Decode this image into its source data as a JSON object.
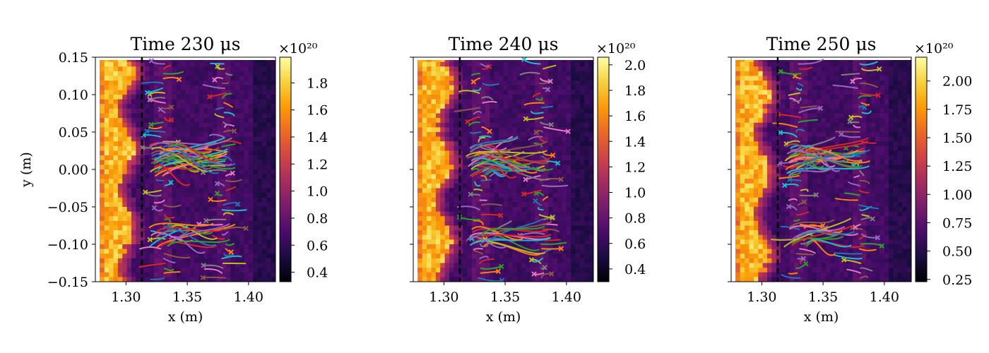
{
  "chart_data": [
    {
      "type": "heatmap",
      "title": "Time 230 μs",
      "xlabel": "x (m)",
      "ylabel": "y (m)",
      "xlim": [
        1.275,
        1.422
      ],
      "ylim": [
        -0.15,
        0.15
      ],
      "x_ticks": [
        1.3,
        1.35,
        1.4
      ],
      "x_tick_labels": [
        "1.30",
        "1.35",
        "1.40"
      ],
      "y_ticks": [
        0.15,
        0.1,
        0.05,
        0.0,
        -0.05,
        -0.1,
        -0.15
      ],
      "y_tick_labels": [
        "0.15",
        "0.10",
        "0.05",
        "0.00",
        "−0.05",
        "−0.10",
        "−0.15"
      ],
      "dashed_line_x": 1.313,
      "colorbar": {
        "range": [
          0.33,
          1.99
        ],
        "ticks": [
          0.4,
          0.6,
          0.8,
          1.0,
          1.2,
          1.4,
          1.6,
          1.8
        ],
        "tick_labels": [
          "0.4",
          "0.6",
          "0.8",
          "1.0",
          "1.2",
          "1.4",
          "1.6",
          "1.8"
        ],
        "multiplier": "×10²⁰"
      },
      "fronts": [
        1.33,
        1.38
      ]
    },
    {
      "type": "heatmap",
      "title": "Time 240 μs",
      "xlabel": "x (m)",
      "ylabel": "",
      "xlim": [
        1.275,
        1.422
      ],
      "ylim": [
        -0.15,
        0.15
      ],
      "x_ticks": [
        1.3,
        1.35,
        1.4
      ],
      "x_tick_labels": [
        "1.30",
        "1.35",
        "1.40"
      ],
      "y_ticks": [
        0.15,
        0.1,
        0.05,
        0.0,
        -0.05,
        -0.1,
        -0.15
      ],
      "y_tick_labels": [],
      "dashed_line_x": 1.313,
      "colorbar": {
        "range": [
          0.3,
          2.06
        ],
        "ticks": [
          0.4,
          0.6,
          0.8,
          1.0,
          1.2,
          1.4,
          1.6,
          1.8,
          2.0
        ],
        "tick_labels": [
          "0.4",
          "0.6",
          "0.8",
          "1.0",
          "1.2",
          "1.4",
          "1.6",
          "1.8",
          "2.0"
        ],
        "multiplier": "×10²⁰"
      },
      "fronts": [
        1.33,
        1.38
      ]
    },
    {
      "type": "heatmap",
      "title": "Time 250 μs",
      "xlabel": "x (m)",
      "ylabel": "",
      "xlim": [
        1.275,
        1.422
      ],
      "ylim": [
        -0.15,
        0.15
      ],
      "x_ticks": [
        1.3,
        1.35,
        1.4
      ],
      "x_tick_labels": [
        "1.30",
        "1.35",
        "1.40"
      ],
      "y_ticks": [
        0.15,
        0.1,
        0.05,
        0.0,
        -0.05,
        -0.1,
        -0.15
      ],
      "y_tick_labels": [],
      "dashed_line_x": 1.313,
      "colorbar": {
        "range": [
          0.23,
          2.21
        ],
        "ticks": [
          0.25,
          0.5,
          0.75,
          1.0,
          1.25,
          1.5,
          1.75,
          2.0
        ],
        "tick_labels": [
          "0.25",
          "0.50",
          "0.75",
          "1.00",
          "1.25",
          "1.50",
          "1.75",
          "2.00"
        ],
        "multiplier": "×10²⁰"
      },
      "fronts": [
        1.33,
        1.38
      ]
    }
  ],
  "colors": {
    "inferno": [
      "#000004",
      "#1b0c41",
      "#4a0c6b",
      "#781c6d",
      "#a52c60",
      "#cf4446",
      "#ed6925",
      "#fb9b06",
      "#f7d13d",
      "#fcffa4"
    ],
    "trajectories": [
      "#1f77b4",
      "#ff7f0e",
      "#2ca02c",
      "#d62728",
      "#9467bd",
      "#8c564b",
      "#e377c2",
      "#7f7f7f",
      "#bcbd22",
      "#17becf"
    ]
  }
}
